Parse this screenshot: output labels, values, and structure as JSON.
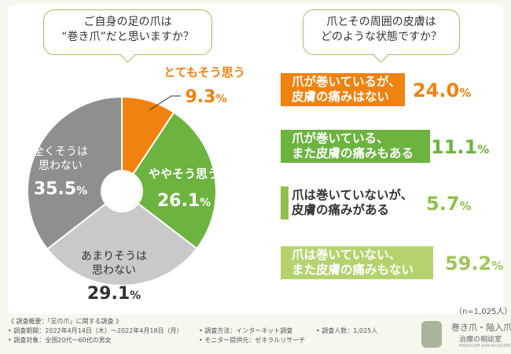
{
  "question_left": [
    "ご自身の足の爪は",
    "“巻き爪”だと思いますか？"
  ],
  "question_right": [
    "爪とその周囲の皮膚は",
    "どのような状態ですか？"
  ],
  "chart_data": [
    {
      "type": "pie",
      "title": "ご自身の足の爪は“巻き爪”だと思いますか？",
      "slices": [
        {
          "label": "とてもそう思う",
          "value": 9.3,
          "display": "9.3",
          "color": "#f0820f"
        },
        {
          "label": "ややそう思う",
          "value": 26.1,
          "display": "26.1",
          "color": "#6cb33f"
        },
        {
          "label": "あまりそうは思わない",
          "value": 29.1,
          "display": "29.1",
          "color": "#c9c9c9"
        },
        {
          "label": "全くそうは思わない",
          "value": 35.5,
          "display": "35.5",
          "color": "#8f8f8f"
        }
      ]
    },
    {
      "type": "bar",
      "title": "爪とその周囲の皮膚はどのような状態ですか？",
      "categories": [
        [
          "爪が巻いているが、",
          "皮膚の痛みはない"
        ],
        [
          "爪が巻いている、",
          "また皮膚の痛みもある"
        ],
        [
          "爪は巻いていないが、",
          "皮膚の痛みがある"
        ],
        [
          "爪は巻いていない、",
          "また皮膚の痛みもない"
        ]
      ],
      "values": [
        24.0,
        11.1,
        5.7,
        59.2
      ],
      "display": [
        "24.0",
        "11.1",
        "5.7",
        "59.2"
      ],
      "colors": [
        "#f0820f",
        "#6cb33f",
        "#8fc14a",
        "#b4d36e"
      ],
      "pct_colors": [
        "#f0820f",
        "#6cb33f",
        "#8fc14a",
        "#9fc659"
      ]
    }
  ],
  "pct_unit": "%",
  "n_note": "（n=1,025人）",
  "footer": {
    "title": "《 調査概要：「足の爪」に関する調査 》",
    "period": "• 調査期間：2022年4月14日（木）〜2022年4月18日（月）",
    "method": "• 調査方法：インターネット調査",
    "count": "• 調査人数：1,025人",
    "target": "• 調査対象：全国20代〜60代の男女",
    "provider": "• モニター提供元：ゼネラルリサーチ"
  },
  "logo": {
    "line1": "巻き爪・陥入爪",
    "line2": "治療の相談室",
    "line3": "MAKIZUME KAN-NYUZUME"
  }
}
